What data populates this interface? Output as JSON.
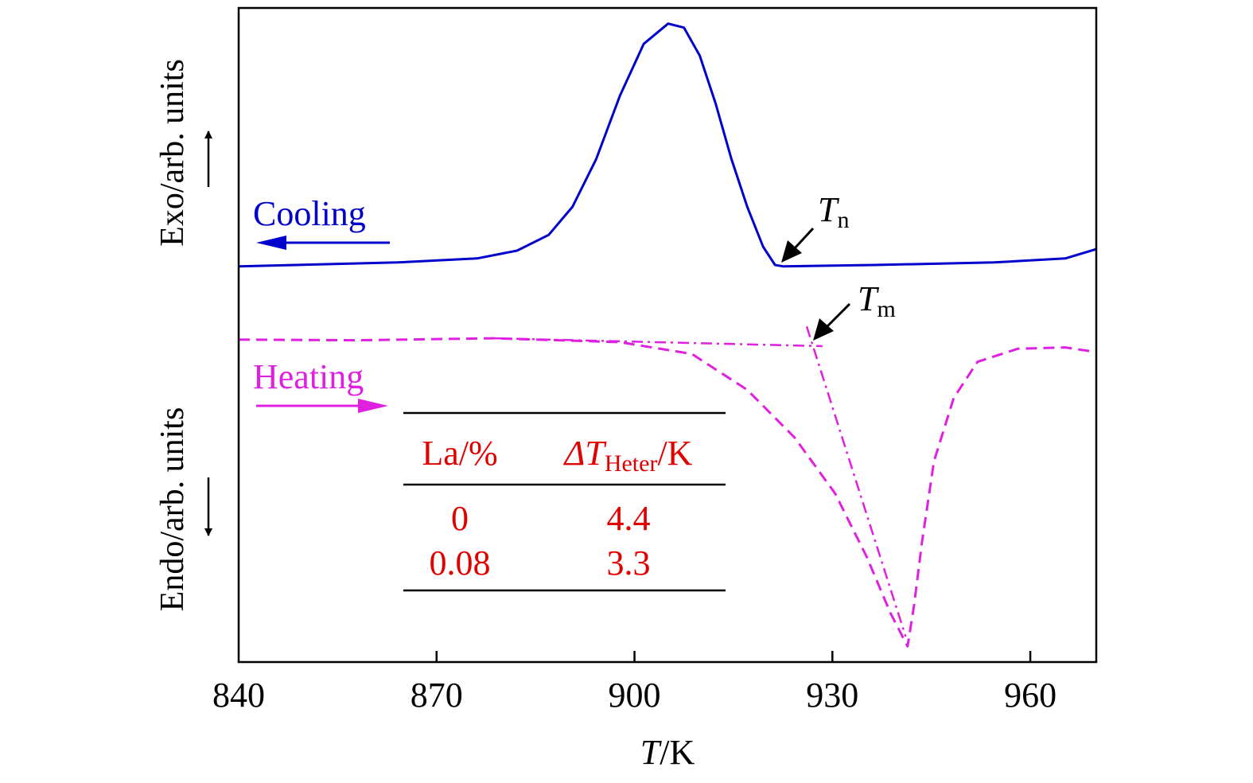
{
  "chart_data": {
    "type": "line",
    "xlabel_italic": "T",
    "xlabel_rest": "/K",
    "ylabel_top": "Exo/arb. units",
    "ylabel_bottom": "Endo/arb. units",
    "xlim": [
      840,
      970
    ],
    "ylim": [
      0,
      100
    ],
    "xticks": [
      840,
      870,
      900,
      930,
      960
    ],
    "xtick_labels": [
      "840",
      "870",
      "900",
      "930",
      "960"
    ],
    "grid": false,
    "colors": {
      "cooling": "#0000cc",
      "heating": "#e020e0",
      "table": "#e00000",
      "annotation": "#000000"
    },
    "series": [
      {
        "name": "Cooling",
        "style": "solid",
        "x": [
          840,
          864.1,
          876.1,
          882.2,
          887.0,
          890.6,
          894.2,
          897.8,
          901.4,
          905.1,
          907.5,
          909.9,
          912.3,
          914.7,
          917.1,
          919.5,
          921.3,
          922.5,
          936.4,
          954.5,
          965.3,
          969.9
        ],
        "y": [
          60.5,
          61.1,
          61.7,
          62.9,
          65.3,
          69.6,
          76.9,
          86.6,
          94.5,
          97.6,
          97.0,
          92.7,
          85.4,
          76.9,
          69.6,
          63.5,
          60.7,
          60.5,
          60.7,
          61.1,
          61.7,
          63.1
        ]
      },
      {
        "name": "Heating",
        "style": "dashed",
        "x": [
          840,
          858.1,
          878.6,
          897.8,
          908.7,
          917.1,
          924.3,
          930.4,
          935.2,
          938.8,
          941.4,
          942.4,
          943.6,
          945.4,
          948.4,
          952.0,
          958.1,
          965.3,
          969.9
        ],
        "y": [
          49.3,
          49.2,
          49.5,
          48.9,
          47.1,
          41.6,
          34.3,
          25.8,
          16.1,
          7.5,
          2.4,
          8.8,
          18.5,
          30.7,
          40.4,
          45.9,
          47.9,
          48.1,
          47.4
        ]
      }
    ],
    "tangents": [
      {
        "x": [
          878.6,
          928.5
        ],
        "y": [
          49.5,
          48.3
        ]
      },
      {
        "x": [
          926.1,
          941.1
        ],
        "y": [
          51.3,
          3.9
        ]
      }
    ],
    "annotations": {
      "cooling_label": "Cooling",
      "heating_label": "Heating",
      "tn_main": "T",
      "tn_sub": "n",
      "tn_point": [
        922.3,
        60.6
      ],
      "tm_main": "T",
      "tm_sub": "m",
      "tm_point": [
        926.6,
        48.3
      ]
    },
    "table": {
      "col1_header": "La/%",
      "col2_header_prefix": "ΔT",
      "col2_header_sub": "Heter",
      "col2_header_suffix": "/K",
      "rows": [
        {
          "la": "0",
          "dt": "4.4"
        },
        {
          "la": "0.08",
          "dt": "3.3"
        }
      ]
    }
  }
}
